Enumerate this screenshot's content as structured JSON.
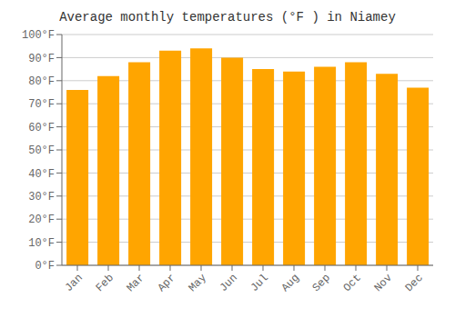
{
  "chart_data": {
    "type": "bar",
    "title": "Average monthly temperatures (°F ) in Niamey",
    "categories": [
      "Jan",
      "Feb",
      "Mar",
      "Apr",
      "May",
      "Jun",
      "Jul",
      "Aug",
      "Sep",
      "Oct",
      "Nov",
      "Dec"
    ],
    "values": [
      76,
      82,
      88,
      93,
      94,
      90,
      85,
      84,
      86,
      88,
      83,
      77
    ],
    "color": "#FFA500",
    "ylim": [
      0,
      100
    ],
    "yticks": [
      {
        "value": 0,
        "label": "0°F"
      },
      {
        "value": 10,
        "label": "10°F"
      },
      {
        "value": 20,
        "label": "20°F"
      },
      {
        "value": 30,
        "label": "30°F"
      },
      {
        "value": 40,
        "label": "40°F"
      },
      {
        "value": 50,
        "label": "50°F"
      },
      {
        "value": 60,
        "label": "60°F"
      },
      {
        "value": 70,
        "label": "70°F"
      },
      {
        "value": 80,
        "label": "80°F"
      },
      {
        "value": 90,
        "label": "90°F"
      },
      {
        "value": 100,
        "label": "100°F"
      }
    ],
    "grid": true
  }
}
